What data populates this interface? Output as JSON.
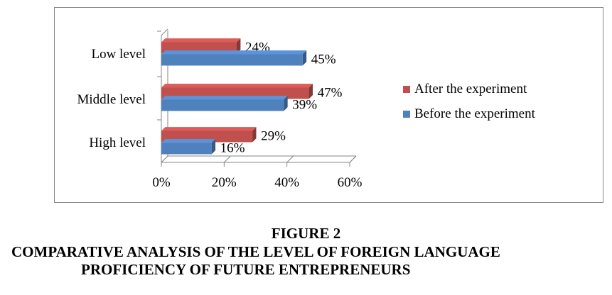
{
  "chart_data": {
    "type": "bar",
    "orientation": "horizontal",
    "categories": [
      "Low level",
      "Middle level",
      "High level"
    ],
    "series": [
      {
        "name": "After the experiment",
        "values": [
          24,
          47,
          29
        ],
        "labels": [
          "24%",
          "47%",
          "29%"
        ],
        "color": "#c0504d"
      },
      {
        "name": "Before the experiment",
        "values": [
          45,
          39,
          16
        ],
        "labels": [
          "45%",
          "39%",
          "16%"
        ],
        "color": "#4f81bd"
      }
    ],
    "xlim": [
      0,
      60
    ],
    "xticks": [
      "0%",
      "20%",
      "40%",
      "60%"
    ],
    "grid": false,
    "legend_position": "right",
    "style": "3d"
  },
  "caption": {
    "figure": "FIGURE 2",
    "line1": "COMPARATIVE ANALYSIS OF THE LEVEL OF FOREIGN LANGUAGE",
    "line2": "PROFICIENCY OF FUTURE ENTREPRENEURS"
  }
}
